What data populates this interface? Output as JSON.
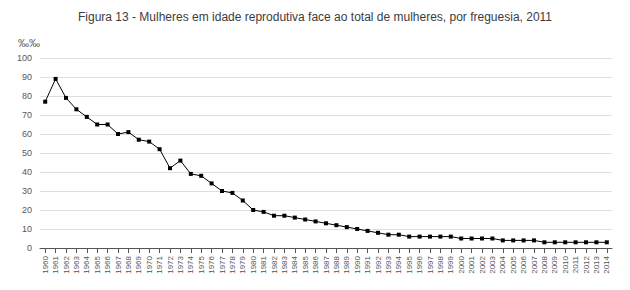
{
  "chart_data": {
    "type": "line",
    "title": "Figura 13 - Mulheres em idade reprodutiva face ao total de mulheres, por freguesia, 2011",
    "ylabel": "‰‰",
    "x": [
      1960,
      1961,
      1962,
      1963,
      1964,
      1965,
      1966,
      1967,
      1968,
      1969,
      1970,
      1971,
      1972,
      1973,
      1974,
      1975,
      1976,
      1977,
      1978,
      1979,
      1980,
      1981,
      1982,
      1983,
      1984,
      1985,
      1986,
      1987,
      1988,
      1989,
      1990,
      1991,
      1992,
      1993,
      1994,
      1995,
      1996,
      1997,
      1998,
      1999,
      2000,
      2001,
      2002,
      2003,
      2004,
      2005,
      2006,
      2007,
      2008,
      2009,
      2010,
      2011,
      2012,
      2013,
      2014
    ],
    "values": [
      77,
      89,
      79,
      73,
      69,
      65,
      65,
      60,
      61,
      57,
      56,
      52,
      42,
      46,
      39,
      38,
      34,
      30,
      29,
      25,
      20,
      19,
      17,
      17,
      16,
      15,
      14,
      13,
      12,
      11,
      10,
      9,
      8,
      7,
      7,
      6,
      6,
      6,
      6,
      6,
      5,
      5,
      5,
      5,
      4,
      4,
      4,
      4,
      3,
      3,
      3,
      3,
      3,
      3,
      3
    ],
    "xlim": [
      1959.5,
      2014.5
    ],
    "xticks": [
      1960,
      1961,
      1962,
      1963,
      1964,
      1965,
      1966,
      1967,
      1968,
      1969,
      1970,
      1971,
      1972,
      1973,
      1974,
      1975,
      1976,
      1977,
      1978,
      1979,
      1980,
      1981,
      1982,
      1983,
      1984,
      1985,
      1986,
      1987,
      1988,
      1989,
      1990,
      1991,
      1992,
      1993,
      1994,
      1995,
      1996,
      1997,
      1998,
      1999,
      2000,
      2001,
      2002,
      2003,
      2004,
      2005,
      2006,
      2007,
      2008,
      2009,
      2010,
      2011,
      2012,
      2013,
      2014
    ],
    "ylim": [
      0,
      100
    ],
    "yticks": [
      0,
      10,
      20,
      30,
      40,
      50,
      60,
      70,
      80,
      90,
      100
    ],
    "color": "#000000",
    "marker": "square",
    "grid": true
  }
}
